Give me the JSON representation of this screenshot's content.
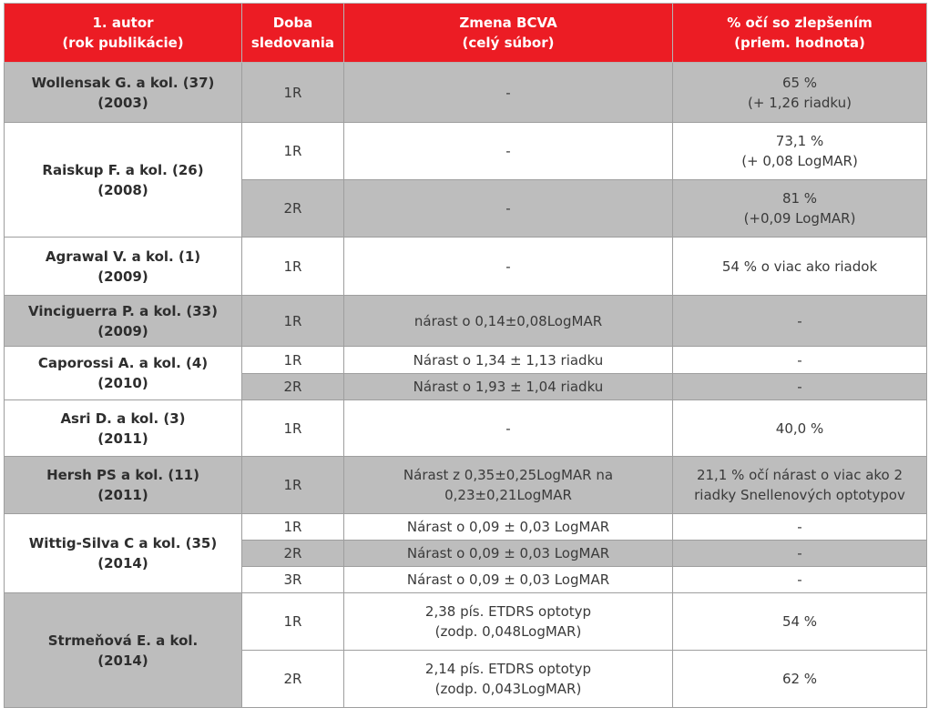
{
  "header": {
    "col_author": "1. autor\n(rok publikácie)",
    "col_period": "Doba\nsledovania",
    "col_bcva": "Zmena BCVA\n(celý súbor)",
    "col_percent": "% očí so zlepšením\n(priem. hodnota)"
  },
  "rows": [
    {
      "author": "Wollensak G. a kol. (37)\n(2003)",
      "shade": "gray",
      "subrows": [
        {
          "period": "1R",
          "bcva": "-",
          "percent": "65 %\n(+ 1,26 riadku)",
          "shade": "gray",
          "h": 66
        }
      ]
    },
    {
      "author": "Raiskup F. a kol. (26)\n(2008)",
      "shade": "white",
      "subrows": [
        {
          "period": "1R",
          "bcva": "-",
          "percent": "73,1 %\n(+ 0,08 LogMAR)",
          "shade": "white",
          "h": 63
        },
        {
          "period": "2R",
          "bcva": "-",
          "percent": "81 %\n(+0,09 LogMAR)",
          "shade": "gray",
          "h": 63
        }
      ]
    },
    {
      "author": "Agrawal V. a kol. (1)\n(2009)",
      "shade": "white",
      "subrows": [
        {
          "period": "1R",
          "bcva": "-",
          "percent": "54 % o viac ako riadok",
          "shade": "white",
          "h": 64
        }
      ]
    },
    {
      "author": "Vinciguerra P. a kol. (33)\n(2009)",
      "shade": "gray",
      "subrows": [
        {
          "period": "1R",
          "bcva": "nárast o 0,14±0,08LogMAR",
          "percent": "-",
          "shade": "gray",
          "h": 56
        }
      ]
    },
    {
      "author": "Caporossi A. a kol. (4)\n(2010)",
      "shade": "white",
      "subrows": [
        {
          "period": "1R",
          "bcva": "Nárast o 1,34 ± 1,13 riadku",
          "percent": "-",
          "shade": "white",
          "h": 30
        },
        {
          "period": "2R",
          "bcva": "Nárast o 1,93 ± 1,04 riadku",
          "percent": "-",
          "shade": "gray",
          "h": 29
        }
      ]
    },
    {
      "author": "Asri D. a kol. (3)\n(2011)",
      "shade": "white",
      "subrows": [
        {
          "period": "1R",
          "bcva": "-",
          "percent": "40,0 %",
          "shade": "white",
          "h": 62
        }
      ]
    },
    {
      "author": "Hersh PS a kol. (11)\n(2011)",
      "shade": "gray",
      "subrows": [
        {
          "period": "1R",
          "bcva": "Nárast z 0,35±0,25LogMAR na\n0,23±0,21LogMAR",
          "percent": "21,1 % očí nárast o viac ako 2\nriadky Snellenových optotypov",
          "shade": "gray",
          "h": 63
        }
      ]
    },
    {
      "author": "Wittig-Silva C a kol. (35)\n(2014)",
      "shade": "white",
      "subrows": [
        {
          "period": "1R",
          "bcva": "Nárast o 0,09 ± 0,03 LogMAR",
          "percent": "-",
          "shade": "white",
          "h": 29
        },
        {
          "period": "2R",
          "bcva": "Nárast o 0,09 ± 0,03 LogMAR",
          "percent": "-",
          "shade": "gray",
          "h": 29
        },
        {
          "period": "3R",
          "bcva": "Nárast o 0,09 ± 0,03 LogMAR",
          "percent": "-",
          "shade": "white",
          "h": 29
        }
      ]
    },
    {
      "author": "Strmeňová E. a kol.\n(2014)",
      "shade": "gray",
      "subrows": [
        {
          "period": "1R",
          "bcva": "2,38 pís. ETDRS optotyp\n(zodp. 0,048LogMAR)",
          "percent": "54 %",
          "shade": "white",
          "h": 63
        },
        {
          "period": "2R",
          "bcva": "2,14 pís. ETDRS optotyp\n(zodp. 0,043LogMAR)",
          "percent": "62 %",
          "shade": "white",
          "h": 63
        }
      ]
    }
  ]
}
